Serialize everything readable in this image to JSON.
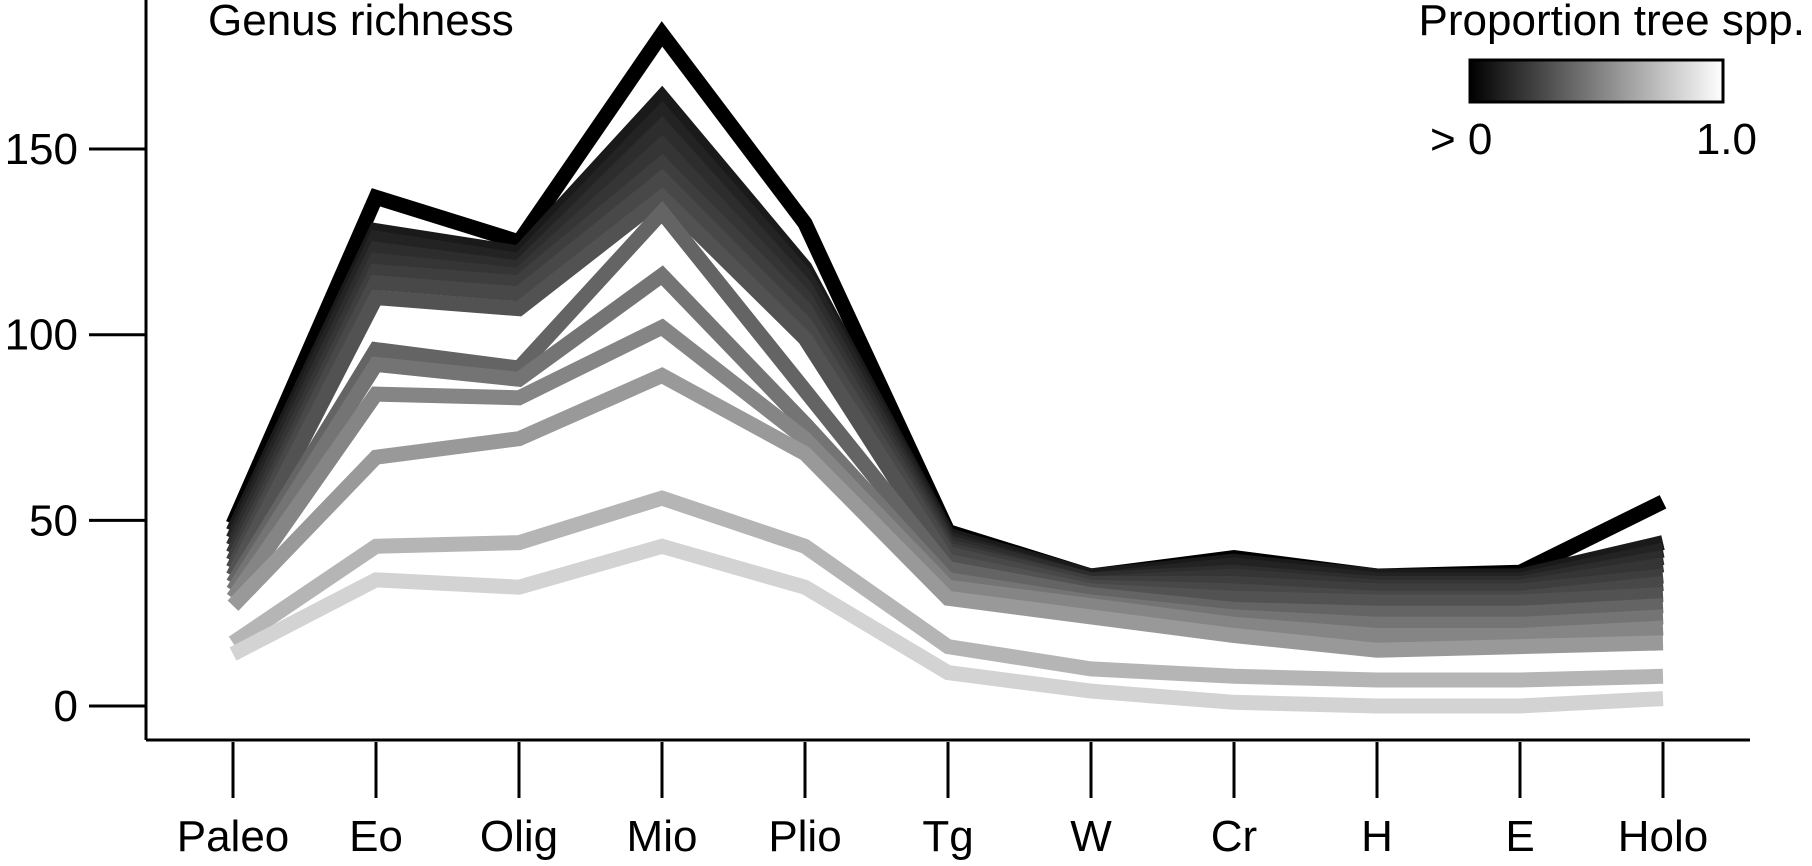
{
  "chart_data": {
    "type": "line",
    "title": "Genus richness",
    "xlabel": "",
    "ylabel": "",
    "ylim": [
      -9,
      190
    ],
    "yticks": [
      "0",
      "50",
      "100",
      "150"
    ],
    "categories": [
      "Paleo",
      "Eo",
      "Olig",
      "Mio",
      "Plio",
      "Tg",
      "W",
      "Cr",
      "H",
      "E",
      "Holo"
    ],
    "legend": {
      "title": "Proportion tree spp.",
      "min_label": "> 0",
      "max_label": "1.0",
      "gradient": [
        "#000000",
        "#ffffff"
      ],
      "placement": "top-right"
    },
    "series": [
      {
        "color": "#000000",
        "values": [
          49,
          137,
          125,
          181,
          130,
          47,
          35,
          40,
          35,
          36,
          55
        ]
      },
      {
        "color": "#1a1a1a",
        "values": [
          47,
          128,
          122,
          164,
          118,
          46,
          35,
          39,
          35,
          35,
          44
        ]
      },
      {
        "color": "#232323",
        "values": [
          45,
          126,
          120,
          160,
          116,
          45,
          34,
          38,
          34,
          34,
          42
        ]
      },
      {
        "color": "#2d2d2d",
        "values": [
          43,
          123,
          118,
          156,
          113,
          44,
          34,
          36,
          33,
          33,
          40
        ]
      },
      {
        "color": "#353535",
        "values": [
          41,
          120,
          116,
          151,
          110,
          43,
          33,
          35,
          32,
          32,
          38
        ]
      },
      {
        "color": "#3e3e3e",
        "values": [
          39,
          117,
          114,
          146,
          107,
          42,
          33,
          33,
          31,
          31,
          35
        ]
      },
      {
        "color": "#484848",
        "values": [
          37,
          114,
          111,
          142,
          103,
          41,
          32,
          31,
          29,
          29,
          33
        ]
      },
      {
        "color": "#525252",
        "values": [
          35,
          110,
          107,
          137,
          99,
          39,
          31,
          29,
          28,
          28,
          30
        ]
      },
      {
        "color": "#646464",
        "values": [
          33,
          96,
          91,
          133,
          85,
          37,
          30,
          26,
          25,
          25,
          27
        ]
      },
      {
        "color": "#747474",
        "values": [
          31,
          92,
          88,
          116,
          76,
          34,
          28,
          24,
          22,
          22,
          24
        ]
      },
      {
        "color": "#858585",
        "values": [
          29,
          84,
          83,
          102,
          72,
          32,
          27,
          22,
          19,
          19,
          21
        ]
      },
      {
        "color": "#999999",
        "values": [
          27,
          67,
          72,
          89,
          68,
          29,
          24,
          19,
          15,
          16,
          17
        ]
      },
      {
        "color": "#b5b5b5",
        "values": [
          17,
          43,
          44,
          56,
          43,
          16,
          10,
          8,
          7,
          7,
          8
        ]
      },
      {
        "color": "#d3d3d3",
        "values": [
          14,
          34,
          32,
          43,
          32,
          9,
          4,
          1,
          0,
          0,
          2
        ]
      }
    ]
  }
}
